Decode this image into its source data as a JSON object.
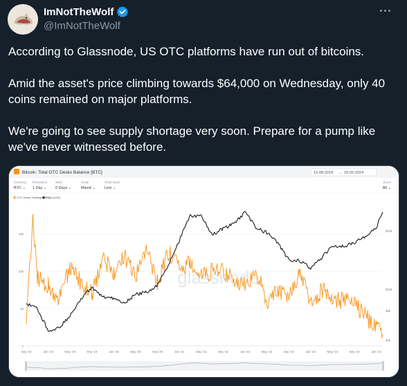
{
  "author": {
    "name": "ImNotTheWolf",
    "handle": "@ImNotTheWolf",
    "verified": true,
    "avatar_icon": "wolf-avatar-icon"
  },
  "tweet": {
    "paragraphs": [
      "According to Glassnode, US OTC platforms have run out of bitcoins.",
      "Amid the asset's price climbing towards $64,000 on Wednesday, only 40 coins remained on major platforms.",
      "We're going to see supply shortage very soon. Prepare for a pump like we've never witnessed before."
    ]
  },
  "colors": {
    "background": "#15202b",
    "muted": "#8b98a5",
    "verified": "#1d9bf0",
    "otc_series": "#f7931a",
    "price_series": "#1a1a1a"
  },
  "chart": {
    "title": "Bitcoin: Total OTC Desks Balance [BTC]",
    "date_from": "15-08-2018",
    "date_to": "29-02-2024",
    "controls": [
      {
        "label": "Currency",
        "value": "BTC"
      },
      {
        "label": "Resolution",
        "value": "1 Day"
      },
      {
        "label": "SMA",
        "value": "0 Days"
      },
      {
        "label": "Scale",
        "value": "Mixed"
      },
      {
        "label": "Chart Style",
        "value": "Line"
      }
    ],
    "zoom": {
      "label": "Zoom",
      "value": "All"
    },
    "watermark": "glassnode"
  },
  "chart_data": {
    "type": "line",
    "title": "Bitcoin: Total OTC Desks Balance [BTC]",
    "x_ticks": [
      "Sep '18",
      "Jan '19",
      "May '19",
      "Sep '19",
      "Jan '20",
      "May '20",
      "Sep '20",
      "Jan '21",
      "May '21",
      "Sep '21",
      "Jan '22",
      "May '22",
      "Sep '22",
      "Jan '23",
      "May '23",
      "Sep '23",
      "Jan '24"
    ],
    "y_left_ticks": [
      "0",
      "5k",
      "10k",
      "15k"
    ],
    "y_right_ticks": [
      "$3k",
      "$6k",
      "$10k",
      "$40k"
    ],
    "ylim_left": [
      0,
      19000
    ],
    "scale_right": "log",
    "legend_placement": "top-left",
    "series": [
      {
        "name": "OTC Desks Holdings [BTC]",
        "axis": "left",
        "color": "#f7931a",
        "x_index": [
          0,
          0.3,
          0.5,
          1,
          1.5,
          2,
          2.5,
          3,
          3.5,
          4,
          4.5,
          5,
          5.5,
          6,
          6.5,
          7,
          7.5,
          8,
          8.5,
          9,
          9.5,
          10,
          10.5,
          11,
          11.5,
          12,
          12.5,
          13,
          13.5,
          14,
          14.5,
          15,
          15.5,
          16,
          16.3
        ],
        "values": [
          2500,
          17500,
          9000,
          8000,
          6500,
          10500,
          8500,
          7000,
          11500,
          10000,
          12000,
          9500,
          13000,
          8500,
          12500,
          10500,
          11000,
          9500,
          10000,
          10000,
          9000,
          8000,
          10000,
          6000,
          7500,
          6500,
          10000,
          5500,
          7500,
          6500,
          6000,
          6000,
          4000,
          2500,
          1500
        ]
      },
      {
        "name": "Price [USD]",
        "axis": "right",
        "color": "#1a1a1a",
        "x_index": [
          0,
          0.5,
          1,
          1.5,
          2,
          2.5,
          3,
          3.5,
          4,
          4.5,
          5,
          5.5,
          6,
          6.5,
          7,
          7.5,
          8,
          8.5,
          9,
          9.5,
          10,
          10.5,
          11,
          11.5,
          12,
          12.5,
          13,
          13.5,
          14,
          14.5,
          15,
          15.5,
          16,
          16.3
        ],
        "values": [
          7000,
          6400,
          3700,
          4000,
          5300,
          8000,
          10500,
          8200,
          8000,
          7200,
          8800,
          9300,
          11000,
          18000,
          32000,
          57000,
          56000,
          36000,
          42000,
          47000,
          62000,
          43000,
          38000,
          30000,
          20000,
          19500,
          16500,
          21000,
          28000,
          27500,
          30000,
          35000,
          43000,
          62000
        ]
      }
    ]
  }
}
